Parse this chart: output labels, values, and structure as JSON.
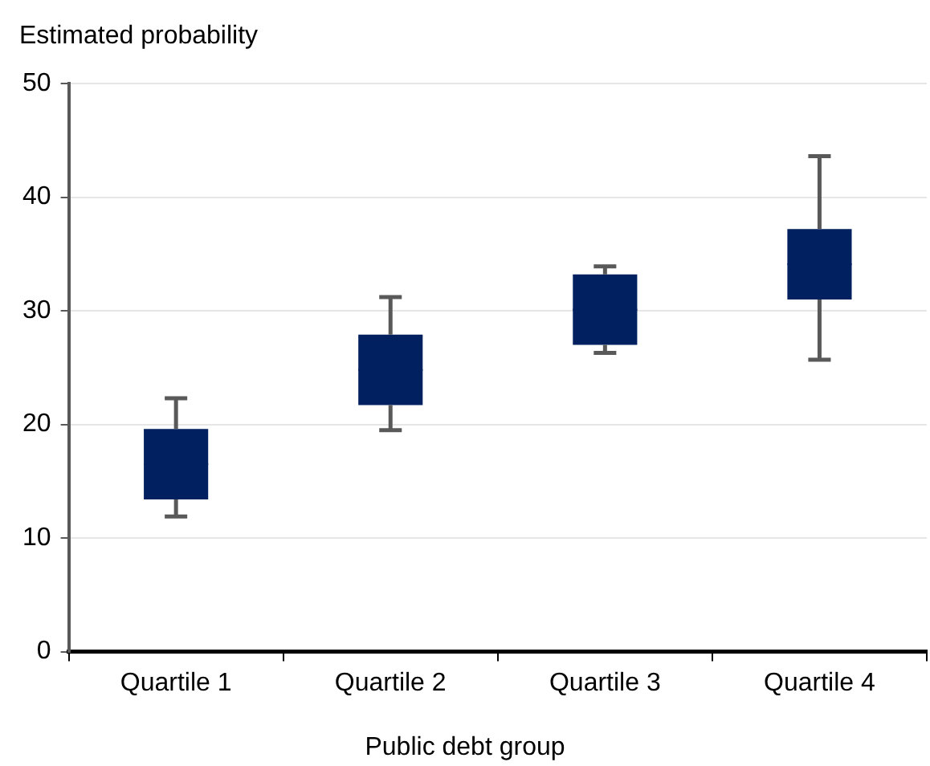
{
  "chart_data": {
    "type": "box",
    "ylabel": "Estimated probability",
    "xlabel": "Public debt group",
    "categories": [
      "Quartile 1",
      "Quartile 2",
      "Quartile 3",
      "Quartile 4"
    ],
    "color": "#002060",
    "boxes": [
      {
        "low": 11.9,
        "q1": 13.4,
        "median": 16.5,
        "q3": 19.6,
        "high": 22.3
      },
      {
        "low": 19.5,
        "q1": 21.7,
        "median": 24.8,
        "q3": 27.9,
        "high": 31.2
      },
      {
        "low": 26.3,
        "q1": 27.0,
        "median": 30.1,
        "q3": 33.2,
        "high": 33.9
      },
      {
        "low": 25.7,
        "q1": 31.0,
        "median": 34.1,
        "q3": 37.2,
        "high": 43.6
      }
    ],
    "ylim": [
      0,
      50
    ],
    "yticks": [
      0,
      10,
      20,
      30,
      40,
      50
    ],
    "grid": "y"
  }
}
